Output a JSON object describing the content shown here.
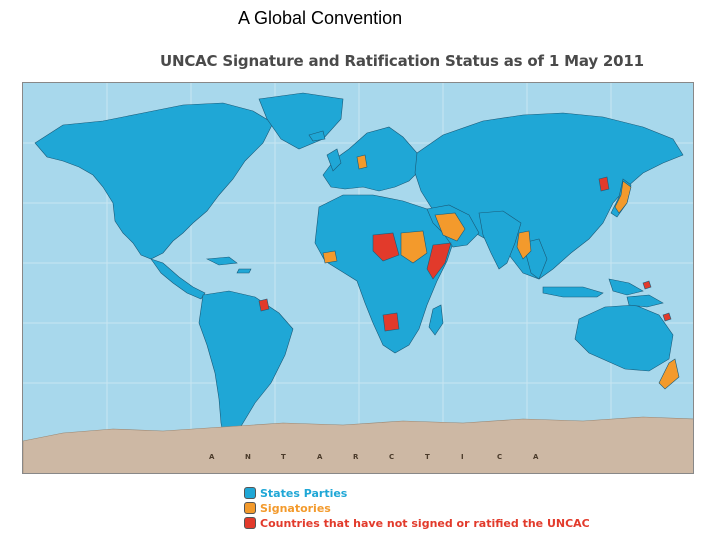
{
  "slide": {
    "title": "A Global Convention"
  },
  "map": {
    "title": "UNCAC Signature and Ratification Status as of 1 May 2011",
    "antarctica_letters": [
      "A",
      "N",
      "T",
      "A",
      "R",
      "C",
      "T",
      "I",
      "C",
      "A"
    ],
    "colors": {
      "ocean": "#a8d8ec",
      "states_parties": "#1fa7d6",
      "signatories": "#f39a2c",
      "not_signed": "#e23a2b",
      "antarctica": "#cdb8a4"
    }
  },
  "legend": {
    "items": [
      {
        "label": "States Parties",
        "color": "#1fa7d6"
      },
      {
        "label": "Signatories",
        "color": "#f39a2c"
      },
      {
        "label": "Countries that have not signed or ratified the UNCAC",
        "color": "#e23a2b"
      }
    ]
  }
}
